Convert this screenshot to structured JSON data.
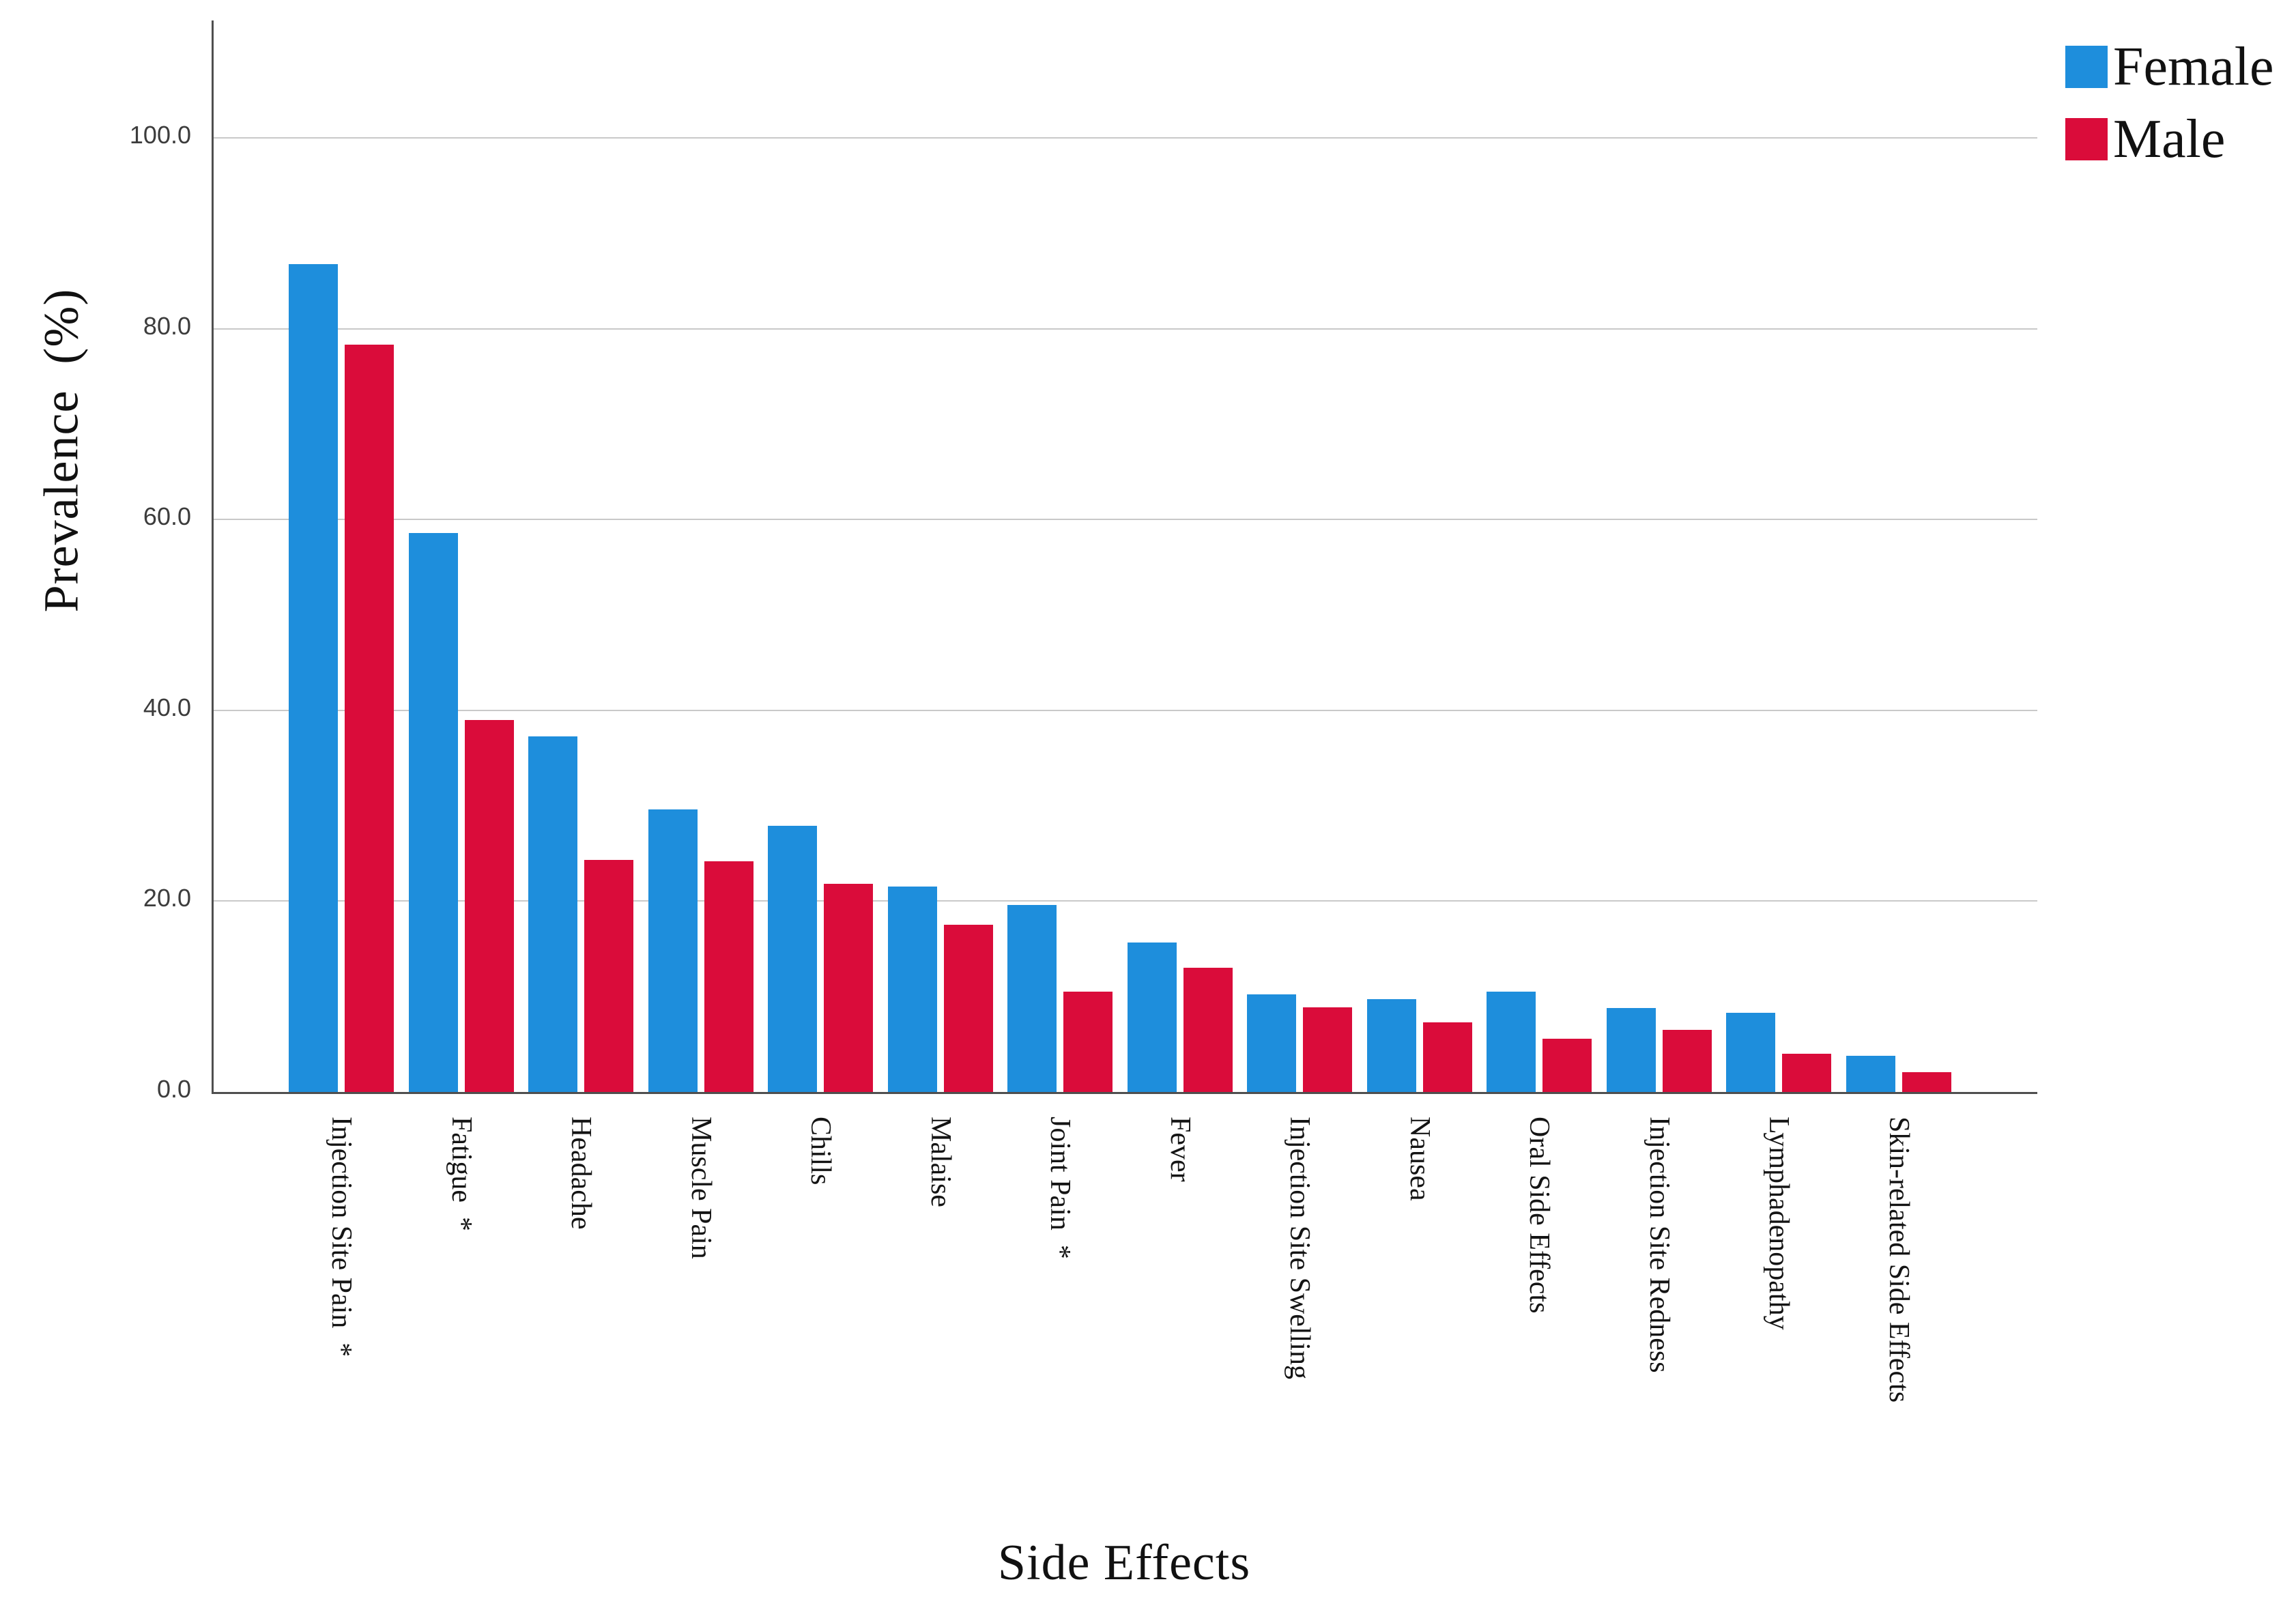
{
  "page": {
    "background": "#ffffff"
  },
  "legend": {
    "position": "top-right",
    "items": [
      {
        "label": "Female",
        "color": "#1E8EDC"
      },
      {
        "label": "Male",
        "color": "#DA0C3A"
      }
    ]
  },
  "chart_data": {
    "type": "bar",
    "title": "",
    "xlabel": "Side Effects",
    "ylabel": "Prevalence  (%)",
    "ylim": [
      0,
      112
    ],
    "yticks": [
      0,
      20,
      40,
      60,
      80,
      100
    ],
    "ytick_labels": [
      "0.0",
      "20.0",
      "40.0",
      "60.0",
      "80.0",
      "100.0"
    ],
    "grid": true,
    "gridline_color": "#c9c9c9",
    "axis_color": "#4f4f4f",
    "legend_position": "top-right",
    "categories": [
      "Injection Site Pain  *",
      "Fatigue  *",
      "Headache",
      "Muscle Pain",
      "Chills",
      "Malaise",
      "Joint Pain  *",
      "Fever",
      "Injection Site Swelling",
      "Nausea",
      "Oral Side Effects",
      "Injection Site Redness",
      "Lymphadenopathy",
      "Skin-related Side Effects"
    ],
    "series": [
      {
        "name": "Female",
        "color": "#1E8EDC",
        "values": [
          86.8,
          58.6,
          37.3,
          29.6,
          27.9,
          21.5,
          19.6,
          15.7,
          10.2,
          9.7,
          10.5,
          8.8,
          8.3,
          3.8
        ]
      },
      {
        "name": "Male",
        "color": "#DA0C3A",
        "values": [
          78.3,
          39.0,
          24.3,
          24.2,
          21.8,
          17.5,
          10.5,
          13.0,
          8.9,
          7.3,
          5.6,
          6.5,
          4.0,
          2.1
        ]
      }
    ]
  }
}
